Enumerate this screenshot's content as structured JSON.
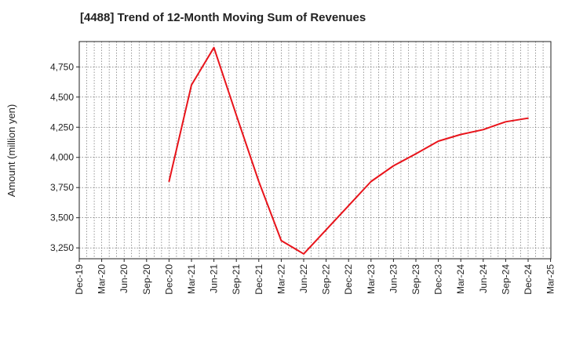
{
  "title": "[4488]  Trend of 12-Month Moving Sum of Revenues",
  "chart_data": {
    "type": "line",
    "title": "[4488]  Trend of 12-Month Moving Sum of Revenues",
    "xlabel": "",
    "ylabel": "Amount (million yen)",
    "x_ticks": [
      "Dec-19",
      "Mar-20",
      "Jun-20",
      "Sep-20",
      "Dec-20",
      "Mar-21",
      "Jun-21",
      "Sep-21",
      "Dec-21",
      "Mar-22",
      "Jun-22",
      "Sep-22",
      "Dec-22",
      "Mar-23",
      "Jun-23",
      "Sep-23",
      "Dec-23",
      "Mar-24",
      "Jun-24",
      "Sep-24",
      "Dec-24",
      "Mar-25"
    ],
    "y_ticks": [
      "3,250",
      "3,500",
      "3,750",
      "4,000",
      "4,250",
      "4,500",
      "4,750"
    ],
    "y_tick_values": [
      3250,
      3500,
      3750,
      4000,
      4250,
      4500,
      4750
    ],
    "ylim": [
      3160,
      4960
    ],
    "grid": true,
    "series": [
      {
        "color": "#e8141b",
        "x": [
          "Dec-20",
          "Mar-21",
          "Jun-21",
          "Sep-21",
          "Dec-21",
          "Mar-22",
          "Jun-22",
          "Sep-22",
          "Dec-22",
          "Mar-23",
          "Jun-23",
          "Sep-23",
          "Dec-23",
          "Mar-24",
          "Jun-24",
          "Sep-24",
          "Dec-24"
        ],
        "values": [
          3800,
          4600,
          4910,
          4350,
          3800,
          3310,
          3200,
          3400,
          3600,
          3800,
          3930,
          4030,
          4135,
          4190,
          4230,
          4295,
          4325
        ]
      }
    ]
  }
}
